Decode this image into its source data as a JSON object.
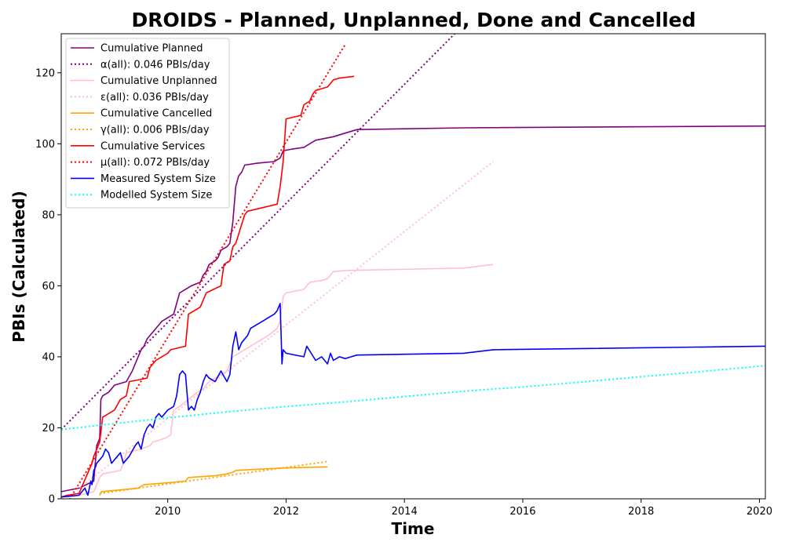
{
  "chart_data": {
    "type": "line",
    "title": "DROIDS - Planned, Unplanned, Done  and Cancelled",
    "xlabel": "Time",
    "ylabel": "PBIs (Calculated)",
    "xlim": [
      2008.2,
      2020.1
    ],
    "ylim": [
      0,
      131
    ],
    "x_ticks": [
      2010,
      2012,
      2014,
      2016,
      2018,
      2020
    ],
    "y_ticks": [
      0,
      20,
      40,
      60,
      80,
      100,
      120
    ],
    "grid": false,
    "legend_position": "top-left",
    "series": [
      {
        "name": "Cumulative Planned",
        "style": "solid",
        "color": "#800080",
        "x": [
          2008.2,
          2008.5,
          2008.75,
          2008.8,
          2008.85,
          2008.87,
          2008.9,
          2009.0,
          2009.05,
          2009.1,
          2009.3,
          2009.4,
          2009.45,
          2009.5,
          2009.55,
          2009.6,
          2009.65,
          2009.8,
          2009.9,
          2010.0,
          2010.1,
          2010.15,
          2010.2,
          2010.3,
          2010.35,
          2010.4,
          2010.55,
          2010.6,
          2010.65,
          2010.7,
          2010.8,
          2010.85,
          2010.9,
          2011.0,
          2011.05,
          2011.1,
          2011.15,
          2011.2,
          2011.25,
          2011.3,
          2011.5,
          2011.8,
          2011.9,
          2011.95,
          2012.0,
          2012.1,
          2012.3,
          2012.4,
          2012.5,
          2012.8,
          2013.0,
          2013.2,
          2015.0,
          2020.1
        ],
        "y": [
          2,
          3,
          5,
          15,
          17,
          28,
          29,
          30,
          31,
          32,
          33,
          36,
          38,
          40,
          42,
          43,
          45,
          48,
          50,
          51,
          52,
          55,
          58,
          59,
          59.5,
          60,
          61,
          63,
          64,
          66,
          67,
          68,
          70,
          71,
          72,
          78,
          88,
          91,
          92,
          94,
          94.5,
          95,
          96,
          98,
          98.2,
          98.5,
          99,
          100,
          101,
          102,
          103,
          104,
          104.5,
          105
        ]
      },
      {
        "name": "α(all): 0.046 PBIs/day",
        "style": "dotted",
        "color": "#800080",
        "x": [
          2008.2,
          2014.85
        ],
        "y": [
          19.5,
          131
        ]
      },
      {
        "name": "Cumulative Unplanned",
        "style": "solid",
        "color": "#ffc0cb",
        "x": [
          2008.2,
          2008.5,
          2008.75,
          2008.85,
          2008.9,
          2009.2,
          2009.25,
          2009.3,
          2009.55,
          2009.7,
          2009.75,
          2009.95,
          2010.05,
          2010.1,
          2010.2,
          2010.35,
          2010.5,
          2010.6,
          2010.7,
          2010.8,
          2011.0,
          2011.1,
          2011.2,
          2011.3,
          2011.5,
          2011.7,
          2011.85,
          2011.9,
          2011.95,
          2012.0,
          2012.3,
          2012.4,
          2012.6,
          2012.7,
          2012.8,
          2013.0,
          2015.0,
          2015.5
        ],
        "y": [
          0.5,
          1,
          2,
          6,
          7,
          8,
          10,
          13,
          14,
          15,
          16,
          17,
          18,
          25,
          26,
          28,
          30,
          31,
          33,
          34,
          36,
          40,
          41,
          42,
          44,
          46,
          48,
          50,
          57,
          58,
          59,
          61,
          61.5,
          62,
          64,
          64.3,
          65,
          66
        ]
      },
      {
        "name": "ε(all): 0.036 PBIs/day",
        "style": "dotted",
        "color": "#ffc0cb",
        "x": [
          2008.2,
          2015.5
        ],
        "y": [
          -1,
          95
        ]
      },
      {
        "name": "Cumulative Cancelled",
        "style": "solid",
        "color": "#ffa500",
        "x": [
          2008.85,
          2008.88,
          2009.5,
          2009.6,
          2010.0,
          2010.3,
          2010.35,
          2010.8,
          2011.0,
          2011.1,
          2011.15,
          2011.5,
          2012.0,
          2012.7
        ],
        "y": [
          1,
          2,
          3,
          4,
          4.5,
          5,
          6,
          6.5,
          7,
          7.5,
          8,
          8.3,
          8.7,
          9
        ]
      },
      {
        "name": "γ(all): 0.006 PBIs/day",
        "style": "dotted",
        "color": "#ffa500",
        "x": [
          2008.85,
          2012.7
        ],
        "y": [
          1.5,
          10.5
        ]
      },
      {
        "name": "Cumulative Services",
        "style": "solid",
        "color": "#ff0000",
        "x": [
          2008.2,
          2008.3,
          2008.5,
          2008.72,
          2008.75,
          2008.85,
          2008.9,
          2009.0,
          2009.1,
          2009.2,
          2009.3,
          2009.35,
          2009.65,
          2009.7,
          2009.75,
          2009.8,
          2009.9,
          2010.0,
          2010.05,
          2010.3,
          2010.35,
          2010.55,
          2010.6,
          2010.65,
          2010.9,
          2010.95,
          2011.05,
          2011.1,
          2011.15,
          2011.3,
          2011.35,
          2011.85,
          2011.9,
          2011.95,
          2012.0,
          2012.25,
          2012.3,
          2012.4,
          2012.45,
          2012.5,
          2012.7,
          2012.75,
          2012.8,
          2012.9,
          2013.15
        ],
        "y": [
          0.5,
          1,
          1.5,
          10,
          12,
          16,
          23,
          24,
          25,
          28,
          29,
          33,
          34,
          37,
          38,
          39,
          40,
          41,
          42,
          43,
          52,
          54,
          56,
          58,
          60,
          66,
          67,
          71,
          72,
          80,
          81,
          83,
          88,
          95,
          107,
          108,
          111,
          112,
          114,
          115,
          116,
          117,
          118,
          118.5,
          119
        ]
      },
      {
        "name": "μ(all): 0.072 PBIs/day",
        "style": "dotted",
        "color": "#ff0000",
        "x": [
          2008.2,
          2013.0
        ],
        "y": [
          -4,
          128
        ]
      },
      {
        "name": "Measured System Size",
        "style": "solid",
        "color": "#0000ff",
        "x": [
          2008.2,
          2008.5,
          2008.55,
          2008.6,
          2008.65,
          2008.7,
          2008.72,
          2008.75,
          2008.78,
          2008.8,
          2008.85,
          2008.9,
          2008.95,
          2009.0,
          2009.05,
          2009.1,
          2009.15,
          2009.2,
          2009.25,
          2009.3,
          2009.35,
          2009.45,
          2009.5,
          2009.55,
          2009.6,
          2009.65,
          2009.7,
          2009.75,
          2009.8,
          2009.85,
          2009.9,
          2010.0,
          2010.1,
          2010.15,
          2010.2,
          2010.25,
          2010.3,
          2010.35,
          2010.4,
          2010.45,
          2010.5,
          2010.55,
          2010.6,
          2010.65,
          2010.7,
          2010.8,
          2010.9,
          2011.0,
          2011.05,
          2011.1,
          2011.15,
          2011.2,
          2011.25,
          2011.3,
          2011.35,
          2011.4,
          2011.5,
          2011.6,
          2011.7,
          2011.8,
          2011.85,
          2011.9,
          2011.93,
          2011.95,
          2012.0,
          2012.3,
          2012.35,
          2012.5,
          2012.6,
          2012.7,
          2012.75,
          2012.8,
          2012.9,
          2013.0,
          2013.1,
          2013.2,
          2015.0,
          2015.5,
          2020.1
        ],
        "y": [
          0.5,
          1,
          2,
          3,
          1,
          5,
          4,
          8,
          9,
          10,
          11,
          12,
          14,
          13,
          10,
          11,
          12,
          13,
          10,
          11,
          12,
          15,
          16,
          14,
          18,
          20,
          21,
          20,
          23,
          24,
          23,
          25,
          26,
          29,
          35,
          36,
          35,
          25,
          26,
          25,
          28,
          30,
          33,
          35,
          34,
          33,
          36,
          33,
          35,
          43,
          47,
          42,
          44,
          45,
          46,
          48,
          49,
          50,
          51,
          52,
          53,
          55,
          38,
          42,
          41,
          40,
          43,
          39,
          40,
          38,
          41,
          39,
          40,
          39.5,
          40,
          40.5,
          41,
          42,
          43
        ]
      },
      {
        "name": "Modelled System Size",
        "style": "dotted",
        "color": "#00ffff",
        "x": [
          2008.2,
          2009.0,
          2010.0,
          2011.0,
          2012.0,
          2013.0,
          2014.0,
          2015.0,
          2016.0,
          2017.0,
          2018.0,
          2019.0,
          2020.1
        ],
        "y": [
          19.5,
          21,
          22.8,
          24.5,
          26,
          27.3,
          28.8,
          30.3,
          31.5,
          32.9,
          34.4,
          35.8,
          37.5
        ]
      }
    ]
  }
}
